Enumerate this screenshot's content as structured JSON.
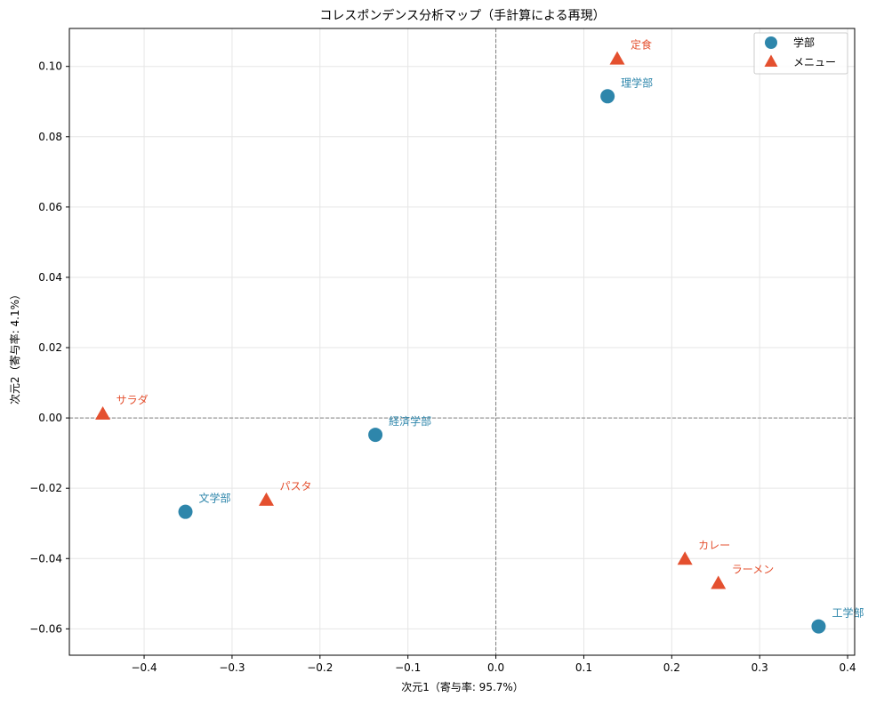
{
  "chart_data": {
    "type": "scatter",
    "title": "コレスポンデンス分析マップ（手計算による再現）",
    "xlabel": "次元1（寄与率: 95.7%）",
    "ylabel": "次元2（寄与率: 4.1%）",
    "xlim": [
      -0.485,
      0.408
    ],
    "ylim": [
      -0.0675,
      0.1108
    ],
    "xticks": [
      -0.4,
      -0.3,
      -0.2,
      -0.1,
      0.0,
      0.1,
      0.2,
      0.3,
      0.4
    ],
    "xtick_labels": [
      "−0.4",
      "−0.3",
      "−0.2",
      "−0.1",
      "0.0",
      "0.1",
      "0.2",
      "0.3",
      "0.4"
    ],
    "yticks": [
      -0.06,
      -0.04,
      -0.02,
      0.0,
      0.02,
      0.04,
      0.06,
      0.08,
      0.1
    ],
    "ytick_labels": [
      "−0.06",
      "−0.04",
      "−0.02",
      "0.00",
      "0.02",
      "0.04",
      "0.06",
      "0.08",
      "0.10"
    ],
    "grid": true,
    "reference_lines": {
      "x": 0,
      "y": 0
    },
    "legend_position": "top-right",
    "series": [
      {
        "name": "学部",
        "marker": "circle",
        "color": "#2e86ab",
        "points": [
          {
            "label": "理学部",
            "x": 0.127,
            "y": 0.0915
          },
          {
            "label": "経済学部",
            "x": -0.137,
            "y": -0.0048
          },
          {
            "label": "文学部",
            "x": -0.353,
            "y": -0.0267
          },
          {
            "label": "工学部",
            "x": 0.367,
            "y": -0.0593
          }
        ]
      },
      {
        "name": "メニュー",
        "marker": "triangle",
        "color": "#e4502f",
        "points": [
          {
            "label": "定食",
            "x": 0.138,
            "y": 0.1023
          },
          {
            "label": "サラダ",
            "x": -0.447,
            "y": 0.0013
          },
          {
            "label": "パスタ",
            "x": -0.261,
            "y": -0.0232
          },
          {
            "label": "カレー",
            "x": 0.215,
            "y": -0.04
          },
          {
            "label": "ラーメン",
            "x": 0.253,
            "y": -0.0469
          }
        ]
      }
    ]
  }
}
